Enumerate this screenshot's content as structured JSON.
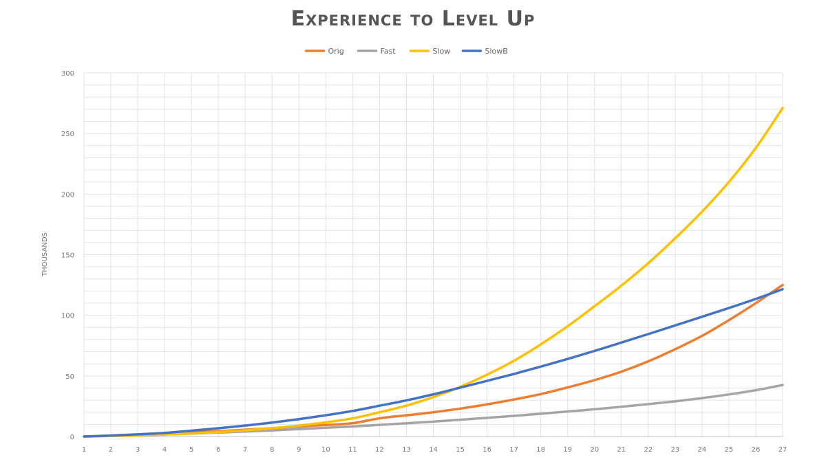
{
  "chart_data": {
    "type": "line",
    "title": "Experience to Level Up",
    "ylabel": "THOUSANDS",
    "xlabel": "",
    "x": [
      1,
      2,
      3,
      4,
      5,
      6,
      7,
      8,
      9,
      10,
      11,
      12,
      13,
      14,
      15,
      16,
      17,
      18,
      19,
      20,
      21,
      22,
      23,
      24,
      25,
      26,
      27
    ],
    "ylim": [
      0,
      300
    ],
    "yticks": [
      0,
      50,
      100,
      150,
      200,
      250,
      300
    ],
    "grid": true,
    "legend_position": "top",
    "series": [
      {
        "name": "Orig",
        "color": "#ED7D31",
        "values": [
          0,
          0.8,
          1.6,
          2.4,
          3.4,
          4.4,
          5.6,
          6.8,
          8.2,
          9.5,
          11,
          15,
          17.5,
          20,
          23,
          26.5,
          30.5,
          35,
          40.5,
          46.5,
          53.5,
          62,
          72,
          83,
          96,
          110,
          125
        ]
      },
      {
        "name": "Fast",
        "color": "#A5A5A5",
        "values": [
          0,
          0.5,
          1,
          1.7,
          2.4,
          3.2,
          4.1,
          5,
          6.1,
          7.2,
          8.3,
          9.6,
          10.9,
          12.3,
          13.8,
          15.4,
          17,
          18.8,
          20.6,
          22.5,
          24.5,
          26.7,
          29,
          31.7,
          34.7,
          38.2,
          42.5
        ]
      },
      {
        "name": "Slow",
        "color": "#FFC000",
        "values": [
          0,
          0.4,
          0.9,
          1.6,
          2.5,
          3.6,
          5,
          6.8,
          9,
          11.7,
          15,
          20,
          25.5,
          32.5,
          41,
          51,
          62.5,
          76,
          91,
          107.5,
          124.5,
          143,
          163.5,
          185.5,
          210,
          238,
          271
        ]
      },
      {
        "name": "SlowB",
        "color": "#4472C4",
        "values": [
          0,
          0.8,
          1.8,
          3,
          4.8,
          6.8,
          9,
          11.5,
          14.3,
          17.5,
          21.1,
          25.4,
          29.8,
          34.8,
          40.3,
          45.9,
          51.6,
          57.7,
          64,
          70.6,
          77.5,
          84.5,
          91.6,
          98.8,
          106,
          113.5,
          121.5
        ]
      }
    ]
  }
}
